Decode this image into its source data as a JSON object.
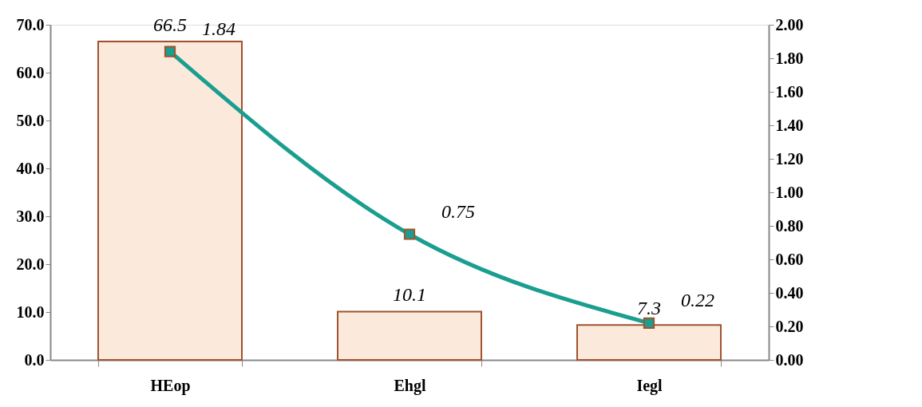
{
  "chart_data": {
    "type": "bar",
    "categories": [
      "HEop",
      "Ehgl",
      "Iegl"
    ],
    "series": [
      {
        "color": "#fbe9dc",
        "values": [
          66.5,
          10.1,
          7.3
        ]
      },
      {
        "type": "line",
        "axis": "y2",
        "color": "#1a9e8f",
        "values": [
          1.84,
          0.75,
          0.22
        ]
      }
    ],
    "ylim": [
      0,
      70
    ],
    "yticks": [
      {
        "value": 0,
        "label": "0.0"
      },
      {
        "value": 10,
        "label": "10.0"
      },
      {
        "value": 20,
        "label": "20.0"
      },
      {
        "value": 30,
        "label": "30.0"
      },
      {
        "value": 40,
        "label": "40.0"
      },
      {
        "value": 50,
        "label": "50.0"
      },
      {
        "value": 60,
        "label": "60.0"
      },
      {
        "value": 70,
        "label": "70.0"
      }
    ],
    "y2lim": [
      0,
      2
    ],
    "y2ticks": [
      {
        "value": 0,
        "label": "0.00"
      },
      {
        "value": 0.2,
        "label": "0.20"
      },
      {
        "value": 0.4,
        "label": "0.40"
      },
      {
        "value": 0.6,
        "label": "0.60"
      },
      {
        "value": 0.8,
        "label": "0.80"
      },
      {
        "value": 1,
        "label": "1.00"
      },
      {
        "value": 1.2,
        "label": "1.20"
      },
      {
        "value": 1.4,
        "label": "1.40"
      },
      {
        "value": 1.6,
        "label": "1.60"
      },
      {
        "value": 1.8,
        "label": "1.80"
      },
      {
        "value": 2,
        "label": "2.00"
      }
    ],
    "data_labels": true,
    "marker": "square",
    "line_style": "solid"
  }
}
